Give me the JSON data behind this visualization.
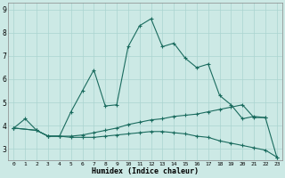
{
  "xlabel": "Humidex (Indice chaleur)",
  "background_color": "#cce9e5",
  "grid_color": "#aad4d0",
  "line_color": "#1a6b5e",
  "xlim": [
    -0.5,
    23.5
  ],
  "ylim": [
    2.5,
    9.3
  ],
  "xticks": [
    0,
    1,
    2,
    3,
    4,
    5,
    6,
    7,
    8,
    9,
    10,
    11,
    12,
    13,
    14,
    15,
    16,
    17,
    18,
    19,
    20,
    21,
    22,
    23
  ],
  "yticks": [
    3,
    4,
    5,
    6,
    7,
    8,
    9
  ],
  "line1_y": [
    3.9,
    4.3,
    3.8,
    3.55,
    3.55,
    4.6,
    5.5,
    6.4,
    4.85,
    4.9,
    7.4,
    8.3,
    8.6,
    7.4,
    7.55,
    6.9,
    6.5,
    6.65,
    5.3,
    4.9,
    4.3,
    4.4,
    4.35,
    null
  ],
  "line2_y": [
    3.9,
    null,
    3.8,
    3.55,
    3.55,
    3.55,
    3.6,
    3.7,
    3.8,
    3.9,
    4.05,
    4.15,
    4.25,
    4.3,
    4.4,
    4.45,
    4.5,
    4.6,
    4.7,
    4.8,
    4.9,
    4.35,
    4.35,
    2.65
  ],
  "line3_y": [
    3.9,
    null,
    3.8,
    3.55,
    3.55,
    3.5,
    3.5,
    3.5,
    3.55,
    3.6,
    3.65,
    3.7,
    3.75,
    3.75,
    3.7,
    3.65,
    3.55,
    3.5,
    3.35,
    3.25,
    3.15,
    3.05,
    2.95,
    2.65
  ],
  "figsize": [
    3.2,
    2.0
  ],
  "dpi": 100
}
